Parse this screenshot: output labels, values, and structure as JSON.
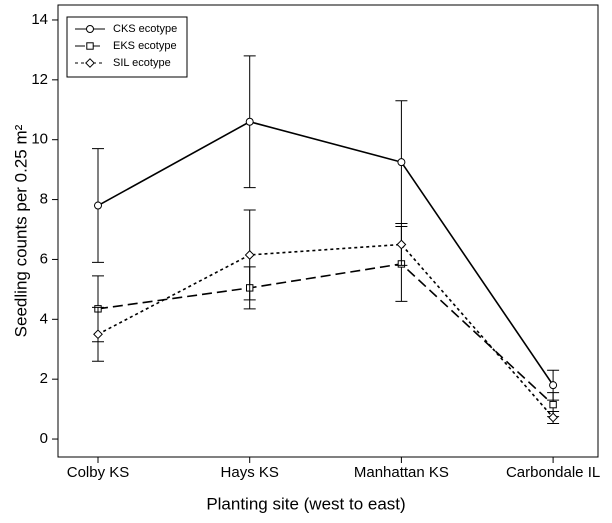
{
  "chart_data": {
    "type": "line",
    "x_label": "Planting site (west to east)",
    "y_label": "Seedling counts per 0.25 m²",
    "categories": [
      "Colby KS",
      "Hays KS",
      "Manhattan KS",
      "Carbondale IL"
    ],
    "ylim": [
      -0.6,
      14.5
    ],
    "yticks": [
      0,
      2,
      4,
      6,
      8,
      10,
      12,
      14
    ],
    "legend": "upper left",
    "series": [
      {
        "name": "CKS ecotype",
        "color": "#000000",
        "marker": "circle",
        "linestyle": "solid",
        "values": [
          7.8,
          10.6,
          9.25,
          1.8
        ],
        "errors": [
          1.9,
          2.2,
          2.05,
          0.5
        ]
      },
      {
        "name": "EKS ecotype",
        "color": "#000000",
        "marker": "square",
        "linestyle": "dashed",
        "values": [
          4.35,
          5.05,
          5.85,
          1.15
        ],
        "errors": [
          1.1,
          0.7,
          1.25,
          0.4
        ]
      },
      {
        "name": "SIL ecotype",
        "color": "#000000",
        "marker": "diamond",
        "linestyle": "dotted",
        "values": [
          3.5,
          6.15,
          6.5,
          0.72
        ],
        "errors": [
          0.9,
          1.5,
          0.7,
          0.2
        ]
      }
    ]
  }
}
